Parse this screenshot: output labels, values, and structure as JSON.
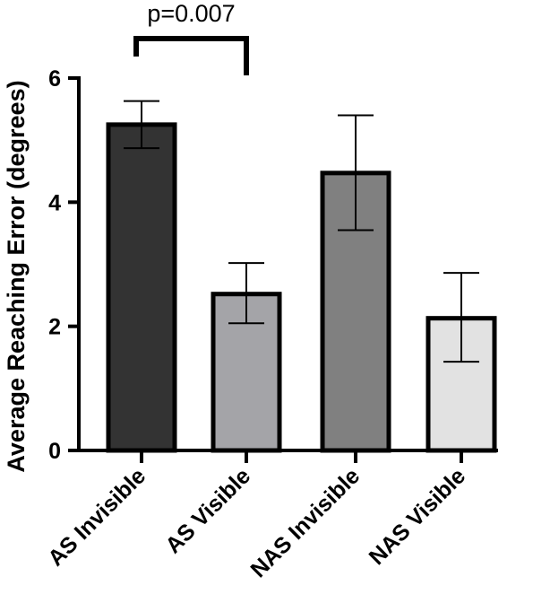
{
  "chart_data": {
    "type": "bar",
    "title": "",
    "xlabel": "",
    "ylabel": "Average Reaching Error (degrees)",
    "ylim": [
      0,
      6
    ],
    "yticks": [
      0,
      2,
      4,
      6
    ],
    "categories": [
      "AS Invisible",
      "AS Visible",
      "NAS Invisible",
      "NAS Visible"
    ],
    "values": [
      5.25,
      2.52,
      4.47,
      2.13
    ],
    "error_low": [
      4.87,
      2.05,
      3.55,
      1.43
    ],
    "error_high": [
      5.63,
      3.02,
      5.4,
      2.86
    ],
    "colors": [
      "#333333",
      "#a4a4a8",
      "#808080",
      "#e2e2e2"
    ],
    "grid": false,
    "annotations": [
      {
        "text": "p=0.007",
        "from_category": "AS Invisible",
        "to_category": "AS Visible"
      }
    ]
  }
}
